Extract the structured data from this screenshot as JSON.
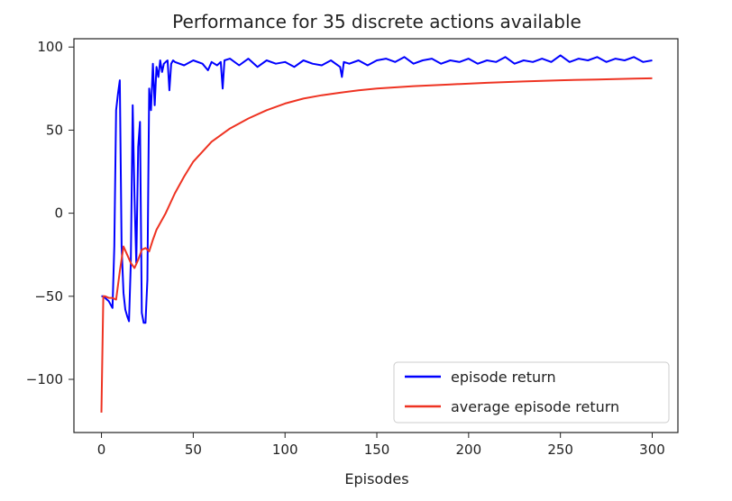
{
  "chart_data": {
    "type": "line",
    "title": "Performance for 35 discrete actions available",
    "xlabel": "Episodes",
    "ylabel": "",
    "xlim": [
      -15,
      314
    ],
    "ylim": [
      -132,
      105
    ],
    "xticks": [
      0,
      50,
      100,
      150,
      200,
      250,
      300
    ],
    "yticks": [
      -100,
      -50,
      0,
      50,
      100
    ],
    "legend_position": "lower-right",
    "grid": false,
    "series": [
      {
        "name": "episode return",
        "color": "#0000ff",
        "x": [
          0,
          1,
          2,
          3,
          4,
          5,
          6,
          7,
          8,
          9,
          10,
          11,
          12,
          13,
          14,
          15,
          16,
          17,
          18,
          19,
          20,
          21,
          22,
          23,
          24,
          25,
          26,
          27,
          28,
          29,
          30,
          31,
          32,
          33,
          34,
          35,
          36,
          37,
          38,
          39,
          40,
          45,
          50,
          55,
          58,
          60,
          63,
          65,
          66,
          67,
          70,
          75,
          80,
          85,
          90,
          95,
          100,
          105,
          110,
          115,
          120,
          125,
          130,
          131,
          132,
          135,
          140,
          145,
          150,
          155,
          160,
          165,
          170,
          175,
          180,
          185,
          190,
          195,
          200,
          205,
          210,
          215,
          220,
          225,
          230,
          235,
          240,
          245,
          250,
          255,
          260,
          265,
          270,
          275,
          280,
          285,
          290,
          295,
          300
        ],
        "y": [
          -50,
          -50,
          -51,
          -52,
          -53,
          -55,
          -57,
          -20,
          62,
          72,
          80,
          -20,
          -48,
          -58,
          -62,
          -65,
          -30,
          65,
          10,
          -30,
          40,
          55,
          -60,
          -66,
          -66,
          -40,
          75,
          62,
          90,
          65,
          88,
          82,
          92,
          85,
          90,
          91,
          92,
          74,
          90,
          92,
          91,
          89,
          92,
          90,
          86,
          91,
          89,
          91,
          75,
          92,
          93,
          89,
          93,
          88,
          92,
          90,
          91,
          88,
          92,
          90,
          89,
          92,
          88,
          82,
          91,
          90,
          92,
          89,
          92,
          93,
          91,
          94,
          90,
          92,
          93,
          90,
          92,
          91,
          93,
          90,
          92,
          91,
          94,
          90,
          92,
          91,
          93,
          91,
          95,
          91,
          93,
          92,
          94,
          91,
          93,
          92,
          94,
          91,
          92
        ]
      },
      {
        "name": "average episode return",
        "color": "#ee3322",
        "x": [
          0,
          1,
          2,
          4,
          6,
          8,
          10,
          12,
          14,
          16,
          18,
          20,
          22,
          24,
          26,
          28,
          30,
          35,
          40,
          45,
          50,
          60,
          70,
          80,
          90,
          100,
          110,
          120,
          130,
          140,
          150,
          170,
          190,
          210,
          230,
          250,
          270,
          290,
          300
        ],
        "y": [
          -120,
          -50,
          -50,
          -51,
          -51,
          -52,
          -35,
          -20,
          -25,
          -30,
          -33,
          -28,
          -22,
          -21,
          -23,
          -16,
          -10,
          0,
          12,
          22,
          31,
          43,
          51,
          57,
          62,
          66,
          69,
          71,
          72.5,
          74,
          75,
          76.5,
          77.5,
          78.5,
          79.3,
          80,
          80.5,
          81,
          81.2
        ]
      }
    ]
  }
}
